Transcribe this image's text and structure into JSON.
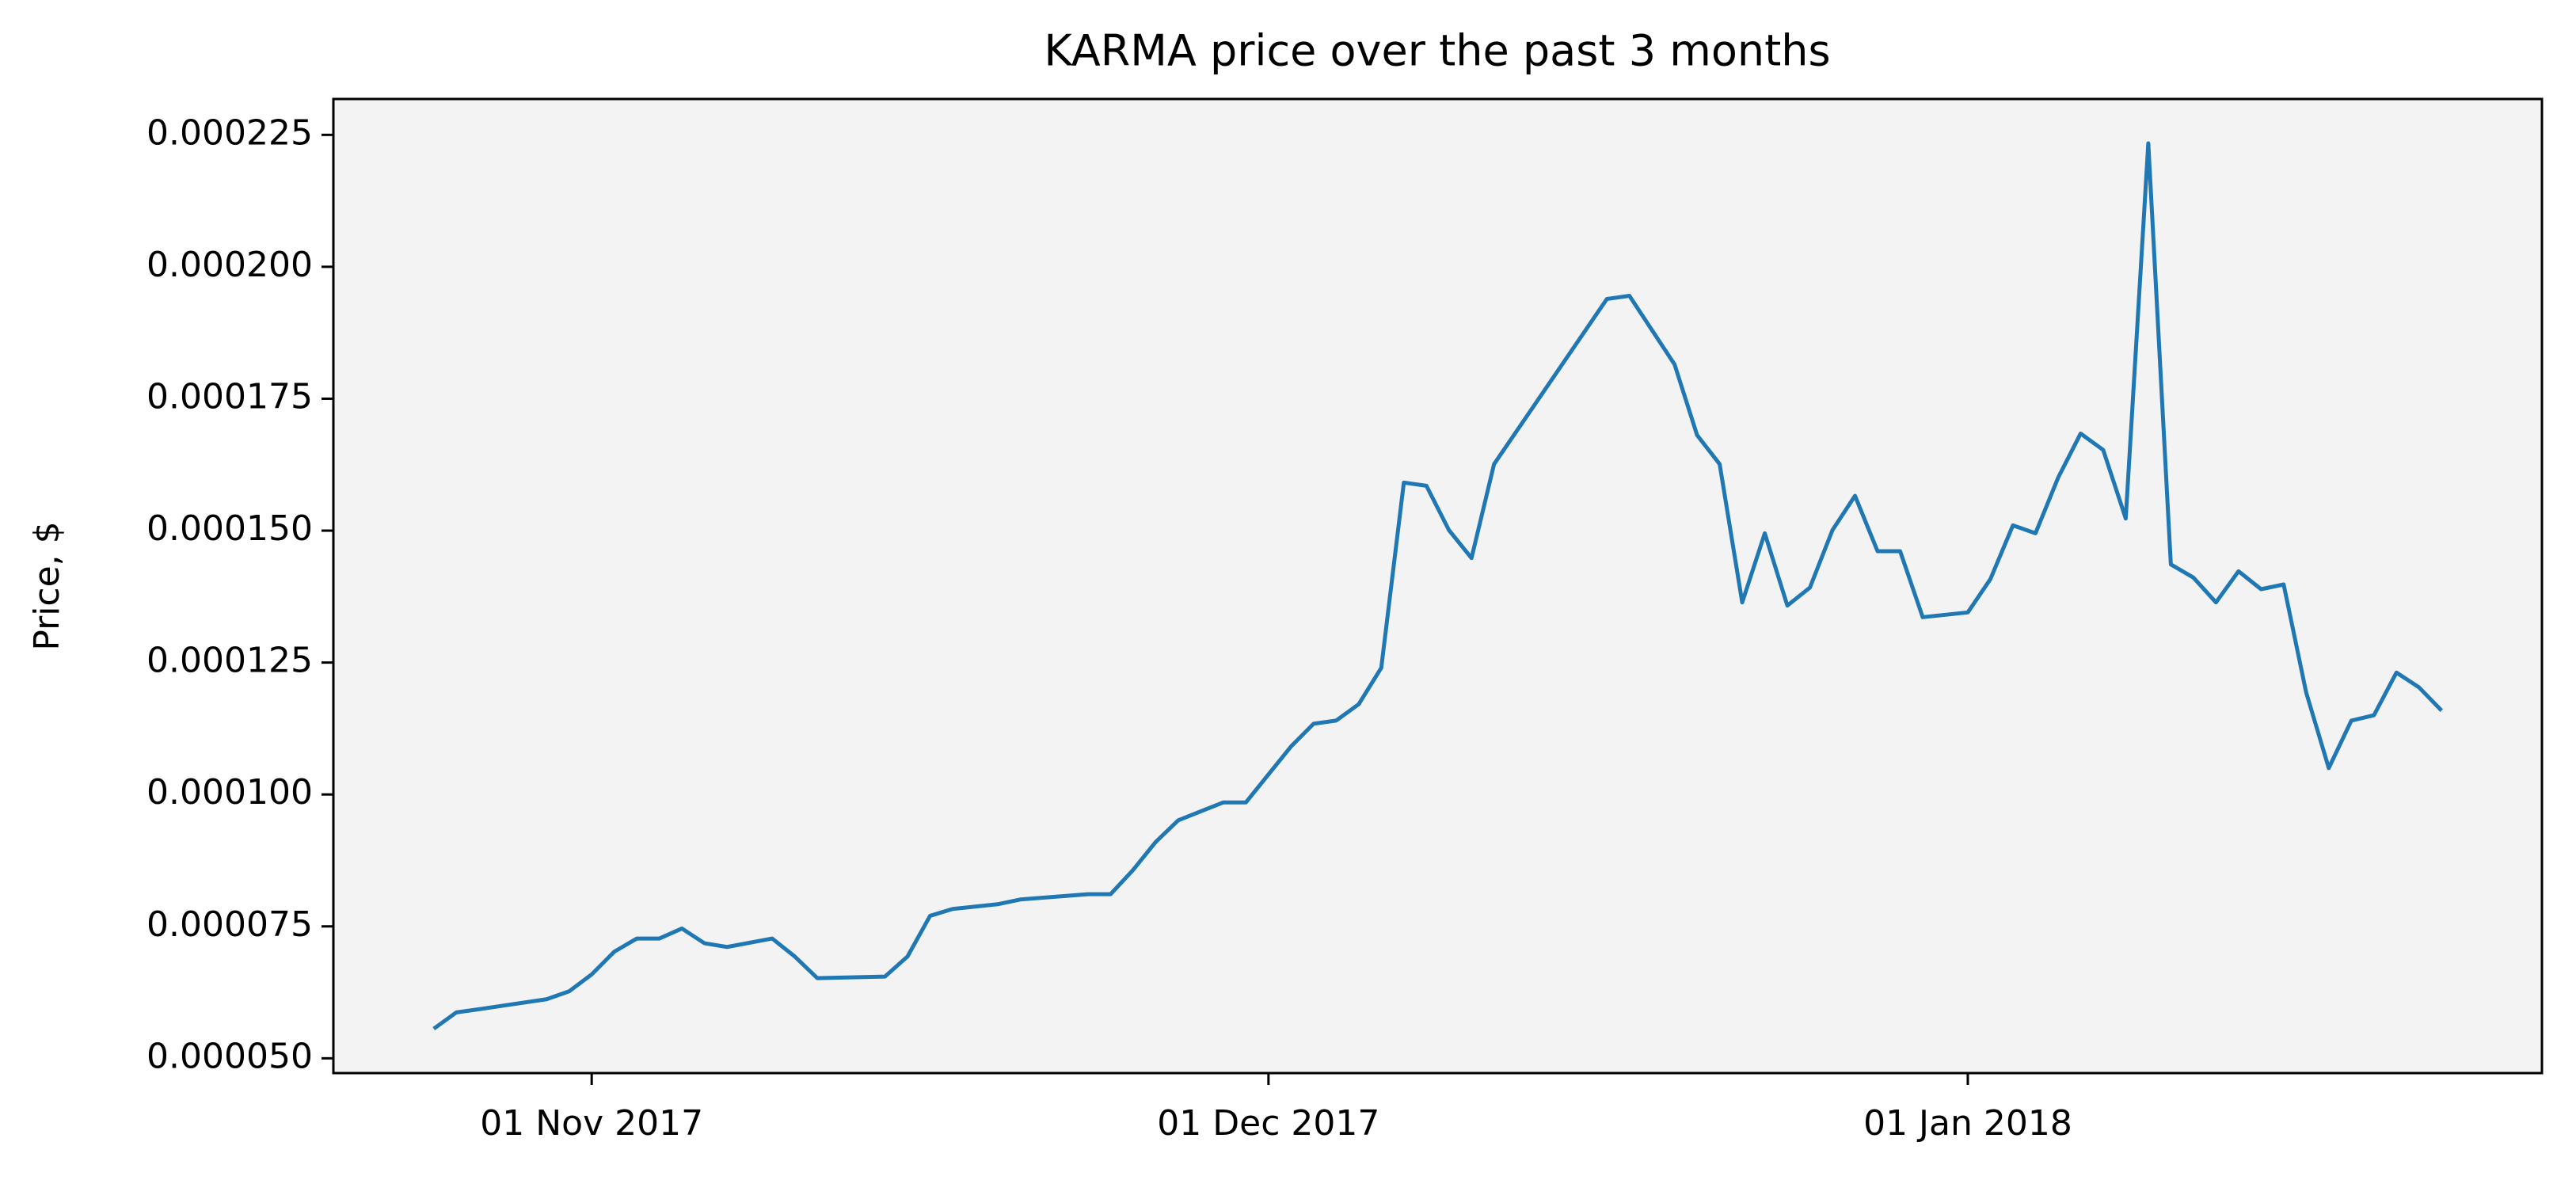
{
  "chart_data": {
    "type": "line",
    "title": "KARMA price over the past 3 months",
    "ylabel": "Price, $",
    "x": [
      "2017-10-25",
      "2017-10-26",
      "2017-10-27",
      "2017-10-30",
      "2017-10-31",
      "2017-11-01",
      "2017-11-02",
      "2017-11-03",
      "2017-11-04",
      "2017-11-05",
      "2017-11-06",
      "2017-11-07",
      "2017-11-09",
      "2017-11-10",
      "2017-11-11",
      "2017-11-14",
      "2017-11-15",
      "2017-11-16",
      "2017-11-17",
      "2017-11-19",
      "2017-11-20",
      "2017-11-23",
      "2017-11-24",
      "2017-11-25",
      "2017-11-26",
      "2017-11-27",
      "2017-11-29",
      "2017-11-30",
      "2017-12-01",
      "2017-12-02",
      "2017-12-03",
      "2017-12-04",
      "2017-12-05",
      "2017-12-06",
      "2017-12-07",
      "2017-12-08",
      "2017-12-09",
      "2017-12-10",
      "2017-12-11",
      "2017-12-16",
      "2017-12-17",
      "2017-12-19",
      "2017-12-20",
      "2017-12-21",
      "2017-12-22",
      "2017-12-23",
      "2017-12-24",
      "2017-12-25",
      "2017-12-26",
      "2017-12-27",
      "2017-12-28",
      "2017-12-29",
      "2017-12-30",
      "2018-01-01",
      "2018-01-02",
      "2018-01-03",
      "2018-01-04",
      "2018-01-05",
      "2018-01-06",
      "2018-01-07",
      "2018-01-08",
      "2018-01-09",
      "2018-01-10",
      "2018-01-11",
      "2018-01-12",
      "2018-01-13",
      "2018-01-14",
      "2018-01-15",
      "2018-01-16",
      "2018-01-17",
      "2018-01-18",
      "2018-01-19",
      "2018-01-20",
      "2018-01-21",
      "2018-01-22"
    ],
    "series": [
      {
        "name": "KARMA",
        "color": "#1f77b4",
        "values": [
          5.56e-05,
          5.87e-05,
          5.93e-05,
          6.12e-05,
          6.27e-05,
          6.59e-05,
          7.02e-05,
          7.27e-05,
          7.27e-05,
          7.46e-05,
          7.18e-05,
          7.11e-05,
          7.27e-05,
          6.93e-05,
          6.52e-05,
          6.55e-05,
          6.93e-05,
          7.7e-05,
          7.83e-05,
          7.92e-05,
          8.01e-05,
          8.11e-05,
          8.11e-05,
          8.57e-05,
          9.1e-05,
          9.51e-05,
          9.85e-05,
          9.85e-05,
          0.0001038,
          0.0001091,
          0.0001134,
          0.000114,
          0.0001171,
          0.000124,
          0.0001591,
          0.0001585,
          0.0001501,
          0.0001448,
          0.0001626,
          0.0001939,
          0.0001945,
          0.0001815,
          0.0001681,
          0.0001626,
          0.0001364,
          0.0001495,
          0.0001358,
          0.0001392,
          0.0001501,
          0.0001566,
          0.0001461,
          0.0001461,
          0.0001336,
          0.0001345,
          0.0001408,
          0.000151,
          0.0001495,
          0.00016,
          0.0001684,
          0.0001653,
          0.0001523,
          0.0002234,
          0.0001436,
          0.0001411,
          0.0001364,
          0.0001423,
          0.0001389,
          0.0001398,
          0.0001193,
          0.000105,
          0.000114,
          0.000115,
          0.0001231,
          0.0001203,
          0.0001159
        ]
      }
    ],
    "xlim": [
      "2017-10-20T13:12Z",
      "2018-01-26T10:48Z"
    ],
    "xticks": [
      {
        "value": "2017-11-01",
        "label": "01 Nov 2017"
      },
      {
        "value": "2017-12-01",
        "label": "01 Dec 2017"
      },
      {
        "value": "2018-01-01",
        "label": "01 Jan 2018"
      }
    ],
    "ylim": [
      4.72e-05,
      0.0002318
    ],
    "yticks": [
      {
        "value": 5e-05,
        "label": "0.000050"
      },
      {
        "value": 7.5e-05,
        "label": "0.000075"
      },
      {
        "value": 0.0001,
        "label": "0.000100"
      },
      {
        "value": 0.000125,
        "label": "0.000125"
      },
      {
        "value": 0.00015,
        "label": "0.000150"
      },
      {
        "value": 0.000175,
        "label": "0.000175"
      },
      {
        "value": 0.0002,
        "label": "0.000200"
      },
      {
        "value": 0.000225,
        "label": "0.000225"
      }
    ],
    "background": "#f3f3f3"
  }
}
